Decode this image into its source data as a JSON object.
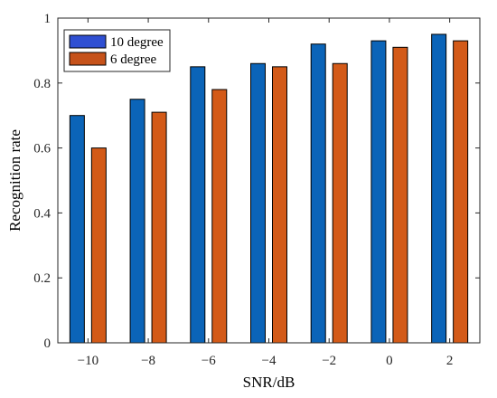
{
  "chart_data": {
    "type": "bar",
    "categories": [
      "-10",
      "-8",
      "-6",
      "-4",
      "-2",
      "0",
      "2"
    ],
    "series": [
      {
        "name": "10 degree",
        "values": [
          0.7,
          0.75,
          0.85,
          0.86,
          0.92,
          0.93,
          0.95
        ],
        "color": "#0b64b8"
      },
      {
        "name": "6 degree",
        "values": [
          0.6,
          0.71,
          0.78,
          0.85,
          0.86,
          0.91,
          0.93
        ],
        "color": "#d35a18"
      }
    ],
    "xlabel": "SNR/dB",
    "ylabel": "Recognition  rate",
    "ylim": [
      0,
      1
    ],
    "yticks": [
      "0",
      "0.2",
      "0.4",
      "0.6",
      "0.8",
      "1"
    ],
    "grid": false,
    "legend_position": "top-left",
    "legend_swatch_colors": [
      "#2f4fd2",
      "#c6521a"
    ]
  }
}
